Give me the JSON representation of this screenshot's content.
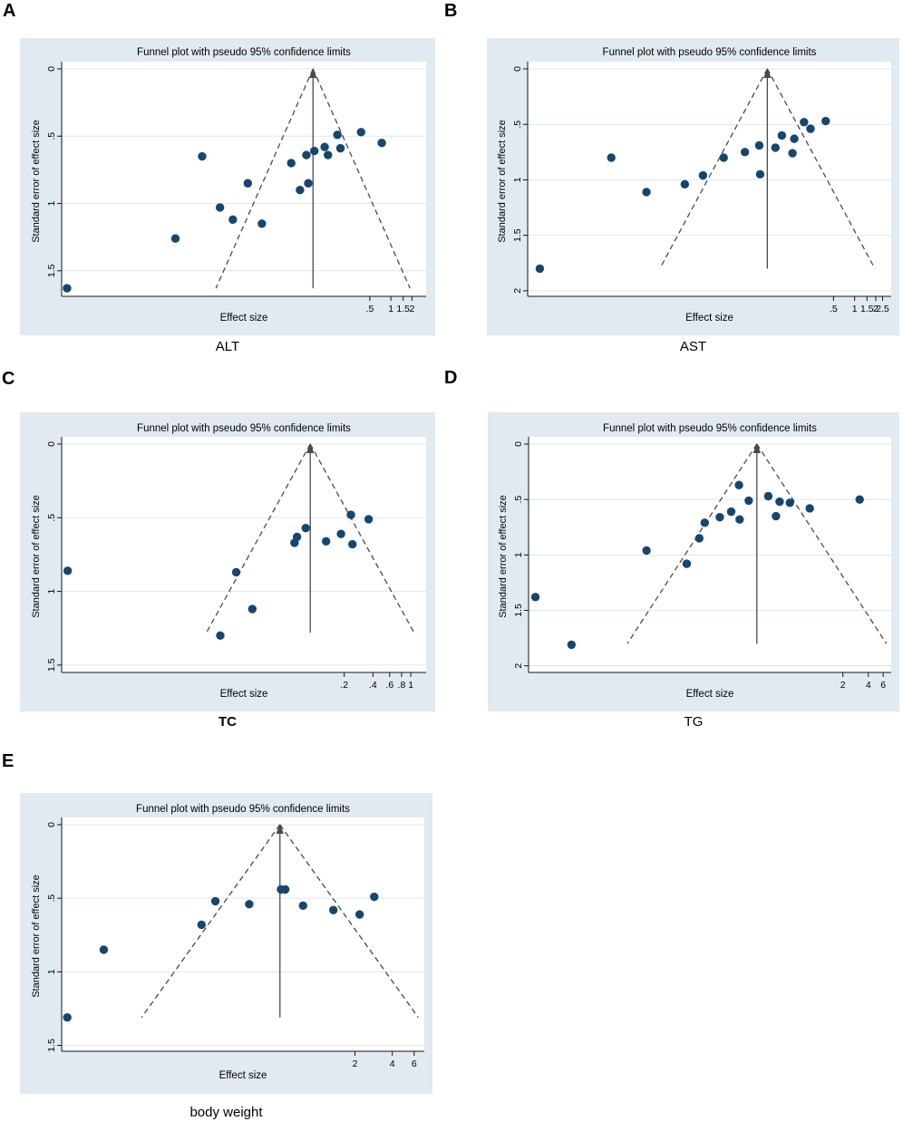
{
  "figure_type": "funnel-plot-grid",
  "colors": {
    "panel_bg": "#e0eaf0",
    "plot_bg": "#ffffff",
    "gridline": "#d9e8f1",
    "dot": "#16466f",
    "funnel_line": "#3d3d3d",
    "pooled_line": "#4a4a4a",
    "axis": "#161616",
    "text": "#000000"
  },
  "chart_data": [
    {
      "type": "scatter",
      "panel": "A",
      "label": "ALT",
      "label_bold": false,
      "title": "Funnel plot with pseudo 95% confidence limits",
      "xlabel": "Effect size",
      "ylabel": "Standard error of effect size",
      "x_scale": "log",
      "x_domain_log": [
        -10.84,
        1.16
      ],
      "x_ticks": [
        {
          "label": ".5",
          "value": 0.5
        },
        {
          "label": "1",
          "value": 1
        },
        {
          "label": "1.5",
          "value": 1.5
        },
        {
          "label": "2",
          "value": 2
        }
      ],
      "y_ticks": [
        {
          "label": "0",
          "value": 0
        },
        {
          "label": ".5",
          "value": 0.5
        },
        {
          "label": "1",
          "value": 1
        },
        {
          "label": "1.5",
          "value": 1.5
        }
      ],
      "ylim": [
        0,
        1.69
      ],
      "ci_level": "pseudo 95%",
      "ci_multiplier": 1.96,
      "pooled_effect": 0.077,
      "max_se": 1.63,
      "points": [
        {
          "effect": 2.34e-05,
          "se": 1.63
        },
        {
          "effect": 0.00083,
          "se": 1.26
        },
        {
          "effect": 0.002,
          "se": 0.65
        },
        {
          "effect": 0.0036,
          "se": 1.03
        },
        {
          "effect": 0.0055,
          "se": 1.12
        },
        {
          "effect": 0.009,
          "se": 0.85
        },
        {
          "effect": 0.0143,
          "se": 1.15
        },
        {
          "effect": 0.0376,
          "se": 0.7
        },
        {
          "effect": 0.0502,
          "se": 0.9
        },
        {
          "effect": 0.062,
          "se": 0.64
        },
        {
          "effect": 0.0659,
          "se": 0.85
        },
        {
          "effect": 0.0805,
          "se": 0.61
        },
        {
          "effect": 0.113,
          "se": 0.58
        },
        {
          "effect": 0.126,
          "se": 0.64
        },
        {
          "effect": 0.172,
          "se": 0.49
        },
        {
          "effect": 0.19,
          "se": 0.59
        },
        {
          "effect": 0.375,
          "se": 0.47
        },
        {
          "effect": 0.741,
          "se": 0.55
        }
      ]
    },
    {
      "type": "scatter",
      "panel": "B",
      "label": "AST",
      "label_bold": false,
      "title": "Funnel plot with pseudo 95% confidence limits",
      "xlabel": "Effect size",
      "ylabel": "Standard error of effect size",
      "x_scale": "log",
      "x_domain_log": [
        -10.73,
        1.2
      ],
      "x_ticks": [
        {
          "label": ".5",
          "value": 0.5
        },
        {
          "label": "1",
          "value": 1
        },
        {
          "label": "1.5",
          "value": 1.5
        },
        {
          "label": "2",
          "value": 2
        },
        {
          "label": "2.5",
          "value": 2.5
        }
      ],
      "y_ticks": [
        {
          "label": "0",
          "value": 0
        },
        {
          "label": ".5",
          "value": 0.5
        },
        {
          "label": "1",
          "value": 1
        },
        {
          "label": "1.5",
          "value": 1.5
        },
        {
          "label": "2",
          "value": 2
        }
      ],
      "ylim": [
        0,
        2.05
      ],
      "ci_level": "pseudo 95%",
      "ci_multiplier": 1.96,
      "pooled_effect": 0.057,
      "max_se": 1.8,
      "points": [
        {
          "effect": 3.26e-05,
          "se": 1.8
        },
        {
          "effect": 0.00034,
          "se": 0.8
        },
        {
          "effect": 0.00108,
          "se": 1.11
        },
        {
          "effect": 0.0038,
          "se": 1.04
        },
        {
          "effect": 0.0069,
          "se": 0.96
        },
        {
          "effect": 0.0136,
          "se": 0.8
        },
        {
          "effect": 0.0273,
          "se": 0.75
        },
        {
          "effect": 0.0437,
          "se": 0.69
        },
        {
          "effect": 0.045,
          "se": 0.95
        },
        {
          "effect": 0.0743,
          "se": 0.71
        },
        {
          "effect": 0.0917,
          "se": 0.6
        },
        {
          "effect": 0.13,
          "se": 0.76
        },
        {
          "effect": 0.138,
          "se": 0.63
        },
        {
          "effect": 0.19,
          "se": 0.48
        },
        {
          "effect": 0.235,
          "se": 0.54
        },
        {
          "effect": 0.387,
          "se": 0.47
        }
      ]
    },
    {
      "type": "scatter",
      "panel": "C",
      "label": "TC",
      "label_bold": true,
      "title": "Funnel plot with pseudo 95% confidence limits",
      "xlabel": "Effect size",
      "ylabel": "Standard error of effect size",
      "x_scale": "log",
      "x_domain_log": [
        -8.44,
        0.37
      ],
      "x_ticks": [
        {
          "label": ".2",
          "value": 0.2
        },
        {
          "label": ".4",
          "value": 0.4
        },
        {
          "label": ".6",
          "value": 0.6
        },
        {
          "label": ".8",
          "value": 0.8
        },
        {
          "label": "1",
          "value": 1
        }
      ],
      "y_ticks": [
        {
          "label": "0",
          "value": 0
        },
        {
          "label": ".5",
          "value": 0.5
        },
        {
          "label": "1",
          "value": 1
        },
        {
          "label": "1.5",
          "value": 1.5
        }
      ],
      "ylim": [
        0,
        1.55
      ],
      "ci_level": "pseudo 95%",
      "ci_multiplier": 1.96,
      "pooled_effect": 0.088,
      "max_se": 1.28,
      "points": [
        {
          "effect": 0.00025,
          "se": 0.86
        },
        {
          "effect": 0.01,
          "se": 1.3
        },
        {
          "effect": 0.0147,
          "se": 0.87
        },
        {
          "effect": 0.0217,
          "se": 1.12
        },
        {
          "effect": 0.0601,
          "se": 0.67
        },
        {
          "effect": 0.0639,
          "se": 0.63
        },
        {
          "effect": 0.0789,
          "se": 0.57
        },
        {
          "effect": 0.129,
          "se": 0.66
        },
        {
          "effect": 0.185,
          "se": 0.61
        },
        {
          "effect": 0.235,
          "se": 0.48
        },
        {
          "effect": 0.244,
          "se": 0.68
        },
        {
          "effect": 0.361,
          "se": 0.51
        }
      ]
    },
    {
      "type": "scatter",
      "panel": "D",
      "label": "TG",
      "label_bold": false,
      "title": "Funnel plot with pseudo 95% confidence limits",
      "xlabel": "Effect size",
      "ylabel": "Standard error of effect size",
      "x_scale": "log",
      "x_domain_log": [
        -7.87,
        2.01
      ],
      "x_ticks": [
        {
          "label": "2",
          "value": 2
        },
        {
          "label": "4",
          "value": 4
        },
        {
          "label": "6",
          "value": 6
        }
      ],
      "y_ticks": [
        {
          "label": "0",
          "value": 0
        },
        {
          "label": ".5",
          "value": 0.5
        },
        {
          "label": "1",
          "value": 1
        },
        {
          "label": "1.5",
          "value": 1.5
        },
        {
          "label": "2",
          "value": 2
        }
      ],
      "ylim": [
        0,
        2.06
      ],
      "ci_level": "pseudo 95%",
      "ci_multiplier": 1.96,
      "pooled_effect": 0.192,
      "max_se": 1.8,
      "points": [
        {
          "effect": 0.00046,
          "se": 1.38
        },
        {
          "effect": 0.00123,
          "se": 1.81
        },
        {
          "effect": 0.0095,
          "se": 0.96
        },
        {
          "effect": 0.0284,
          "se": 1.08
        },
        {
          "effect": 0.04,
          "se": 0.85
        },
        {
          "effect": 0.0464,
          "se": 0.71
        },
        {
          "effect": 0.07,
          "se": 0.66
        },
        {
          "effect": 0.0954,
          "se": 0.61
        },
        {
          "effect": 0.118,
          "se": 0.37
        },
        {
          "effect": 0.12,
          "se": 0.68
        },
        {
          "effect": 0.154,
          "se": 0.51
        },
        {
          "effect": 0.262,
          "se": 0.47
        },
        {
          "effect": 0.323,
          "se": 0.65
        },
        {
          "effect": 0.357,
          "se": 0.52
        },
        {
          "effect": 0.472,
          "se": 0.53
        },
        {
          "effect": 0.811,
          "se": 0.58
        },
        {
          "effect": 3.16,
          "se": 0.5
        }
      ]
    },
    {
      "type": "scatter",
      "panel": "E",
      "label": "body weight",
      "label_bold": false,
      "title": "Funnel plot with pseudo 95% confidence limits",
      "xlabel": "Effect size",
      "ylabel": "Standard error of effect size",
      "x_scale": "log",
      "x_domain_log": [
        -4.75,
        1.98
      ],
      "x_ticks": [
        {
          "label": "2",
          "value": 2
        },
        {
          "label": "4",
          "value": 4
        },
        {
          "label": "6",
          "value": 6
        }
      ],
      "y_ticks": [
        {
          "label": "0",
          "value": 0
        },
        {
          "label": ".5",
          "value": 0.5
        },
        {
          "label": "1",
          "value": 1
        },
        {
          "label": "1.5",
          "value": 1.5
        }
      ],
      "ylim": [
        0,
        1.54
      ],
      "ci_level": "pseudo 95%",
      "ci_multiplier": 1.96,
      "pooled_effect": 0.497,
      "max_se": 1.31,
      "points": [
        {
          "effect": 0.0096,
          "se": 1.31
        },
        {
          "effect": 0.0189,
          "se": 0.85
        },
        {
          "effect": 0.116,
          "se": 0.68
        },
        {
          "effect": 0.15,
          "se": 0.52
        },
        {
          "effect": 0.281,
          "se": 0.54
        },
        {
          "effect": 0.507,
          "se": 0.44
        },
        {
          "effect": 0.549,
          "se": 0.44
        },
        {
          "effect": 0.763,
          "se": 0.55
        },
        {
          "effect": 1.34,
          "se": 0.58
        },
        {
          "effect": 2.18,
          "se": 0.61
        },
        {
          "effect": 2.86,
          "se": 0.49
        }
      ]
    }
  ]
}
